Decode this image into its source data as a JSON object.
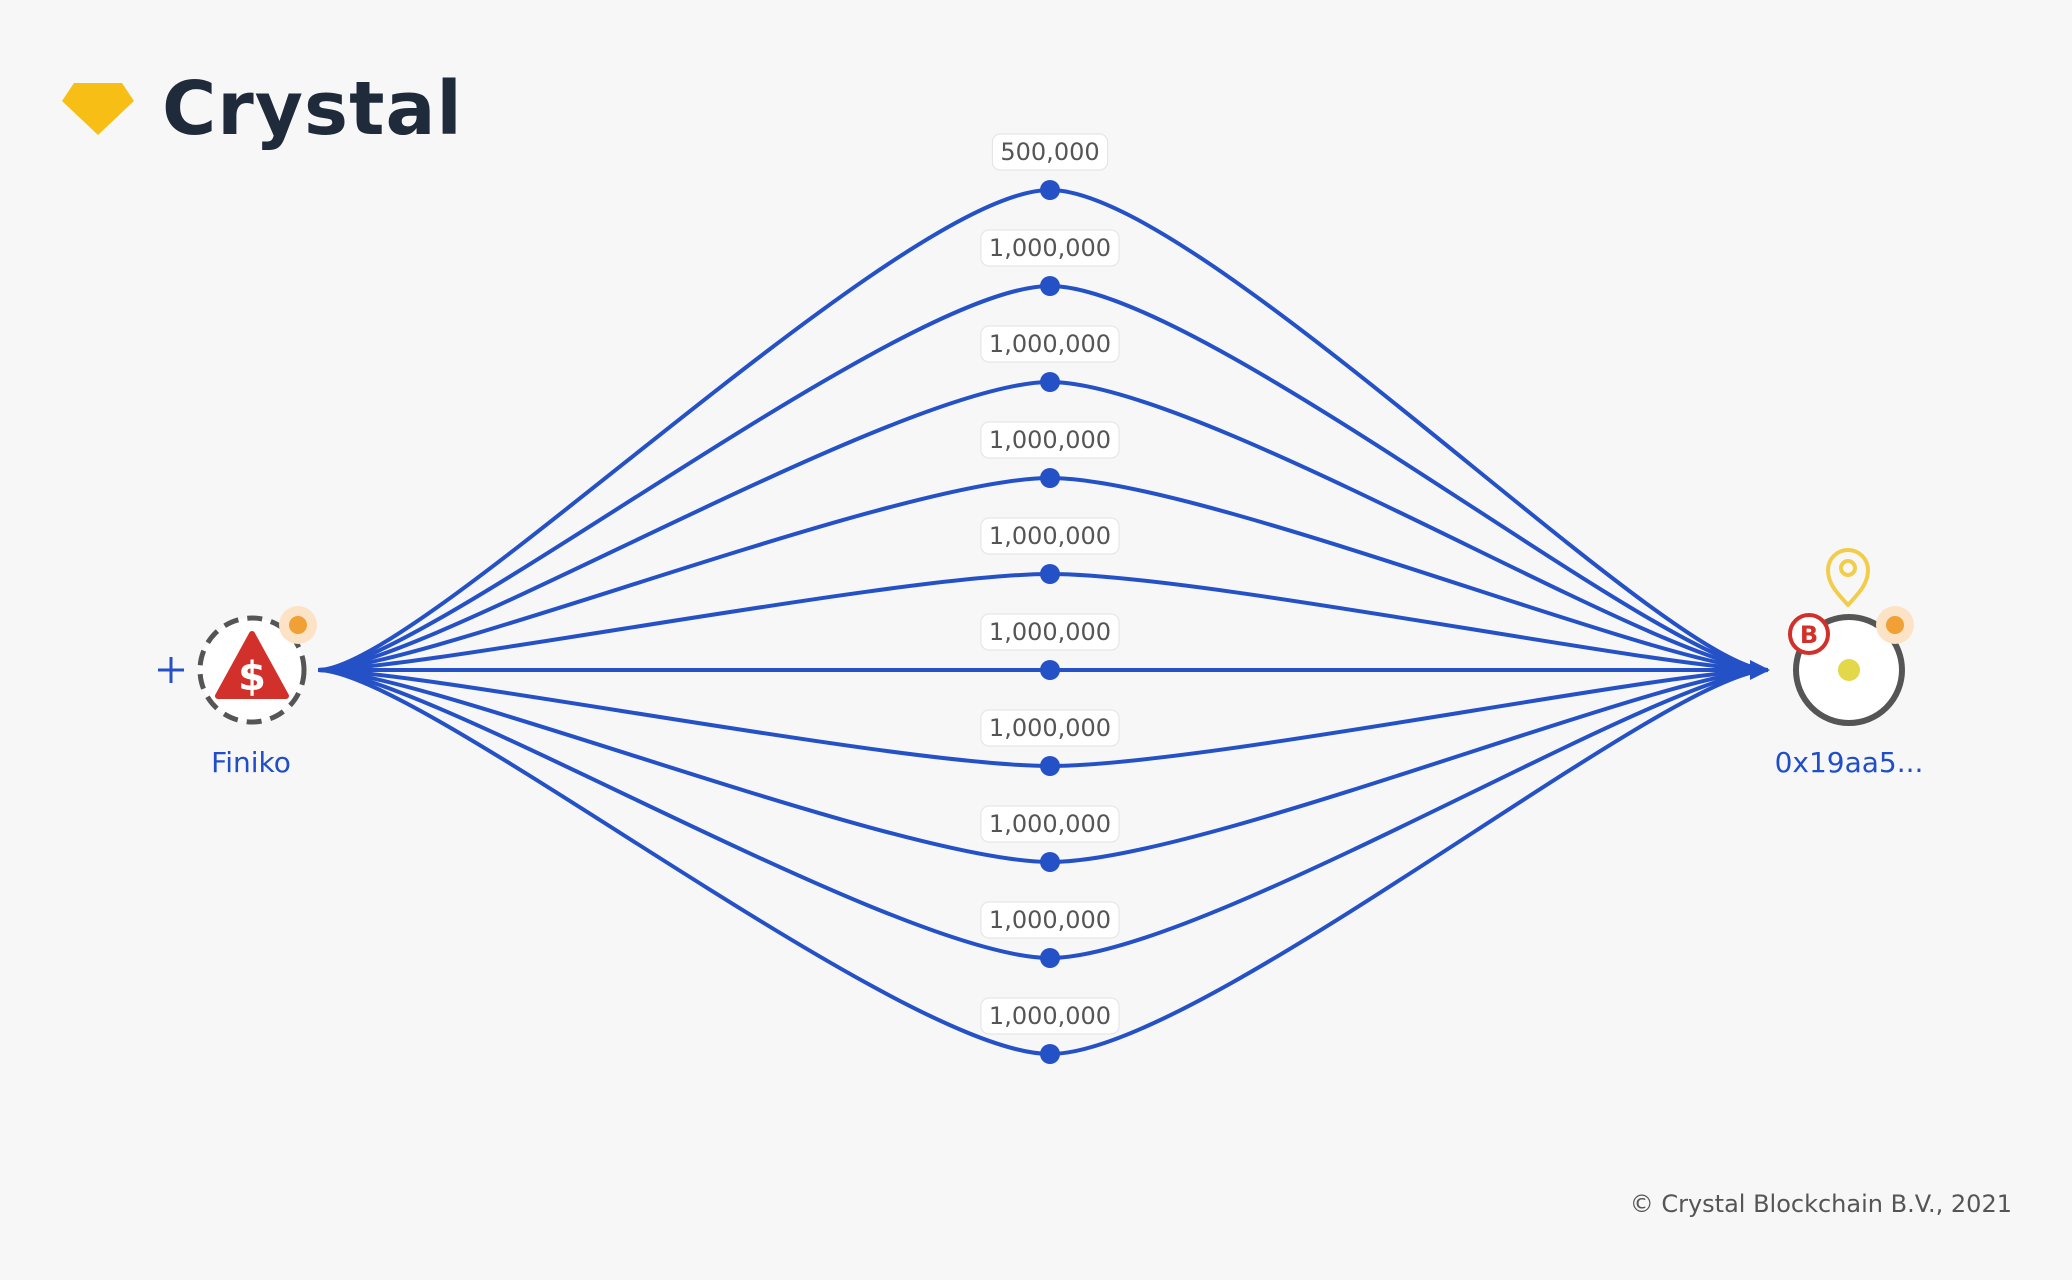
{
  "app": {
    "logo_text": "Crystal",
    "copyright": "© Crystal Blockchain B.V., 2021"
  },
  "colors": {
    "edge": "#2451c6",
    "logo_gem": "#f7bf15",
    "risk_red": "#d2302a",
    "status_orange": "#f0a035",
    "pin_yellow": "#f2cd4c"
  },
  "graph": {
    "source": {
      "label": "Finiko",
      "icon": "dollar-warning-icon",
      "expand_icon": "plus-icon"
    },
    "target": {
      "label": "0x19aa5...",
      "badge_text": "B",
      "icon": "location-pin-icon"
    },
    "transfers": [
      {
        "amount": "500,000"
      },
      {
        "amount": "1,000,000"
      },
      {
        "amount": "1,000,000"
      },
      {
        "amount": "1,000,000"
      },
      {
        "amount": "1,000,000"
      },
      {
        "amount": "1,000,000"
      },
      {
        "amount": "1,000,000"
      },
      {
        "amount": "1,000,000"
      },
      {
        "amount": "1,000,000"
      },
      {
        "amount": "1,000,000"
      }
    ]
  }
}
